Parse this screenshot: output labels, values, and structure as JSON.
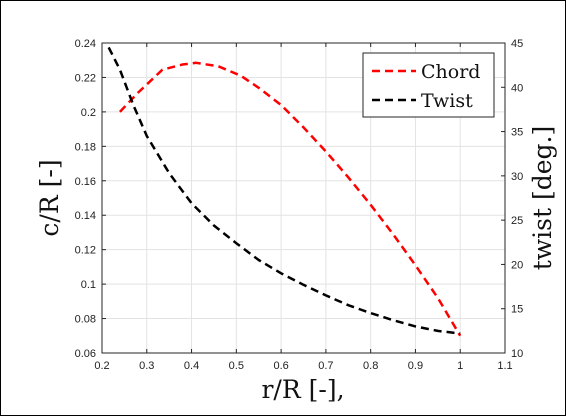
{
  "chart_data": {
    "type": "line",
    "xlabel": "r/R [-],",
    "ylabel_left": "c/R [-]",
    "ylabel_right": "twist [deg.]",
    "xlim": [
      0.2,
      1.1
    ],
    "ylim_left": [
      0.06,
      0.24
    ],
    "ylim_right": [
      10,
      45
    ],
    "grid": true,
    "legend_position": "top-right",
    "x_ticks": [
      "0.2",
      "0.3",
      "0.4",
      "0.5",
      "0.6",
      "0.7",
      "0.8",
      "0.9",
      "1",
      "1.1"
    ],
    "y_left_ticks": [
      "0.06",
      "0.08",
      "0.1",
      "0.12",
      "0.14",
      "0.16",
      "0.18",
      "0.2",
      "0.22",
      "0.24"
    ],
    "y_right_ticks": [
      "10",
      "15",
      "20",
      "25",
      "30",
      "35",
      "40",
      "45"
    ],
    "series": [
      {
        "name": "Chord",
        "axis": "left",
        "color": "#ff0000",
        "dash": "dashed",
        "x": [
          0.24,
          0.28,
          0.335,
          0.38,
          0.41,
          0.46,
          0.51,
          0.55,
          0.6,
          0.65,
          0.7,
          0.75,
          0.8,
          0.85,
          0.9,
          0.95,
          1.0
        ],
        "y": [
          0.2,
          0.211,
          0.2245,
          0.2275,
          0.2285,
          0.2265,
          0.221,
          0.214,
          0.204,
          0.191,
          0.177,
          0.162,
          0.146,
          0.129,
          0.111,
          0.092,
          0.07
        ]
      },
      {
        "name": "Twist",
        "axis": "right",
        "color": "#000000",
        "dash": "dashed",
        "x": [
          0.215,
          0.24,
          0.27,
          0.3,
          0.35,
          0.4,
          0.45,
          0.5,
          0.55,
          0.6,
          0.65,
          0.7,
          0.75,
          0.8,
          0.85,
          0.9,
          0.95,
          1.0
        ],
        "y": [
          44.5,
          42.0,
          38.0,
          34.5,
          30.3,
          26.9,
          24.4,
          22.4,
          20.5,
          19.0,
          17.7,
          16.5,
          15.4,
          14.5,
          13.7,
          13.0,
          12.5,
          12.2
        ]
      }
    ]
  }
}
